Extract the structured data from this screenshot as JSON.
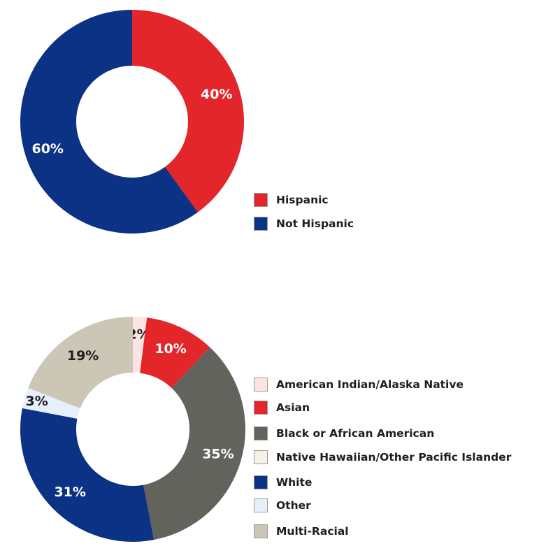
{
  "chart_data": [
    {
      "type": "pie",
      "categories": [
        "Hispanic",
        "Not Hispanic"
      ],
      "values": [
        40,
        60
      ],
      "labels": [
        "40%",
        "60%"
      ],
      "colors": [
        "#e3262a",
        "#0b3284"
      ],
      "label_colors": [
        "#ffffff",
        "#ffffff"
      ],
      "donut": true,
      "legend_position": "right"
    },
    {
      "type": "pie",
      "categories": [
        "American Indian/Alaska Native",
        "Asian",
        "Black or African American",
        "Native Hawaiian/Other Pacific Islander",
        "White",
        "Other",
        "Multi-Racial"
      ],
      "values": [
        2,
        10,
        35,
        0,
        31,
        3,
        19
      ],
      "labels": [
        "2%",
        "10%",
        "35%",
        "",
        "31%",
        "3%",
        "19%"
      ],
      "colors": [
        "#fde4e4",
        "#e3262a",
        "#63635d",
        "#f6f2e6",
        "#0b3284",
        "#e6f0fb",
        "#cbc6b6"
      ],
      "label_colors": [
        "#1e1e1e",
        "#ffffff",
        "#ffffff",
        "#1e1e1e",
        "#ffffff",
        "#1e1e1e",
        "#1e1e1e"
      ],
      "donut": true,
      "legend_position": "right"
    }
  ]
}
